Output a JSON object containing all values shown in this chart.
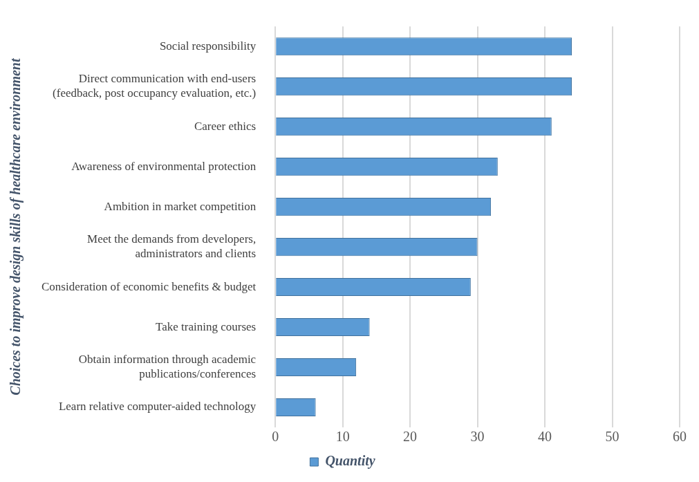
{
  "chart_data": {
    "type": "bar",
    "orientation": "horizontal",
    "ylabel": "Choices to improve design skills of healthcare environment",
    "categories": [
      "Social responsibility",
      "Direct communication with end-users\n(feedback, post occupancy evaluation, etc.)",
      "Career ethics",
      "Awareness of environmental protection",
      "Ambition in market competition",
      "Meet the demands from developers,\nadministrators and clients",
      "Consideration of economic benefits & budget",
      "Take training courses",
      "Obtain information through academic\npublications/conferences",
      "Learn relative computer-aided technology"
    ],
    "series": [
      {
        "name": "Quantity",
        "color": "#5b9bd5",
        "values": [
          44,
          44,
          41,
          33,
          32,
          30,
          29,
          14,
          12,
          6
        ]
      }
    ],
    "xlim": [
      0,
      60
    ],
    "xticks": [
      0,
      10,
      20,
      30,
      40,
      50,
      60
    ],
    "grid": "x",
    "legend": "bottom"
  }
}
